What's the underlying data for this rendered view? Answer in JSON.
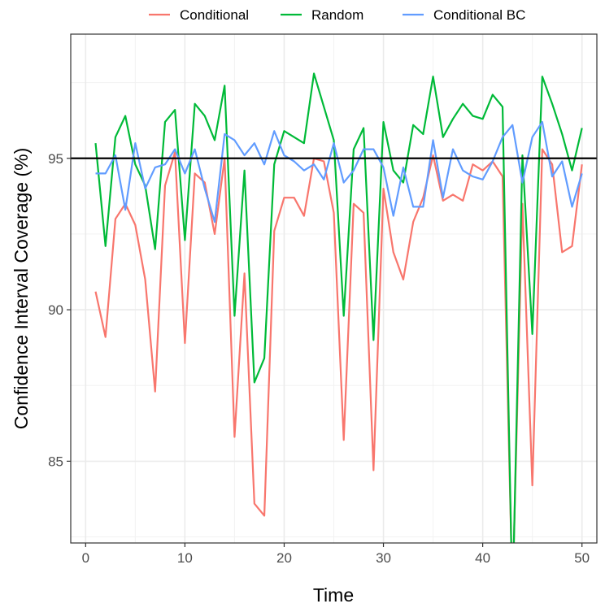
{
  "chart_data": {
    "type": "line",
    "xlabel": "Time",
    "ylabel": "Confidence Interval Coverage (%)",
    "xlim": [
      -1.5,
      51.5
    ],
    "ylim": [
      82.3,
      99.1
    ],
    "x_ticks": [
      0,
      10,
      20,
      30,
      40,
      50
    ],
    "y_ticks": [
      85,
      90,
      95
    ],
    "x_tick_labels": [
      "0",
      "10",
      "20",
      "30",
      "40",
      "50"
    ],
    "y_tick_labels": [
      "85",
      "90",
      "95"
    ],
    "grid": true,
    "legend_position": "top",
    "reference_line": {
      "y": 95,
      "color": "#000000"
    },
    "x": [
      1,
      2,
      3,
      4,
      5,
      6,
      7,
      8,
      9,
      10,
      11,
      12,
      13,
      14,
      15,
      16,
      17,
      18,
      19,
      20,
      21,
      22,
      23,
      24,
      25,
      26,
      27,
      28,
      29,
      30,
      31,
      32,
      33,
      34,
      35,
      36,
      37,
      38,
      39,
      40,
      41,
      42,
      43,
      44,
      45,
      46,
      47,
      48,
      49,
      50
    ],
    "series": [
      {
        "name": "Conditional",
        "color": "#F8766D",
        "values": [
          90.6,
          89.1,
          93.0,
          93.5,
          92.8,
          91.0,
          87.3,
          94.1,
          95.2,
          88.9,
          94.5,
          94.2,
          92.5,
          95.0,
          85.8,
          91.2,
          83.6,
          83.2,
          92.6,
          93.7,
          93.7,
          93.1,
          95.0,
          94.9,
          93.2,
          85.7,
          93.5,
          93.2,
          84.7,
          94.0,
          91.9,
          91.0,
          92.9,
          93.7,
          95.1,
          93.6,
          93.8,
          93.6,
          94.8,
          94.6,
          94.9,
          94.4,
          80.5,
          93.5,
          84.2,
          95.3,
          94.8,
          91.9,
          92.1,
          94.8
        ]
      },
      {
        "name": "Random",
        "color": "#00BA38",
        "values": [
          95.5,
          92.1,
          95.7,
          96.4,
          94.8,
          94.1,
          92.0,
          96.2,
          96.6,
          92.3,
          96.8,
          96.4,
          95.6,
          97.4,
          89.8,
          94.6,
          87.6,
          88.4,
          94.8,
          95.9,
          95.7,
          95.5,
          97.8,
          96.7,
          95.6,
          89.8,
          95.3,
          96.0,
          89.0,
          96.2,
          94.6,
          94.2,
          96.1,
          95.8,
          97.7,
          95.7,
          96.3,
          96.8,
          96.4,
          96.3,
          97.1,
          96.7,
          80.2,
          95.1,
          89.2,
          97.7,
          96.8,
          95.8,
          94.6,
          96.0
        ]
      },
      {
        "name": "Conditional BC",
        "color": "#619CFF",
        "values": [
          94.5,
          94.5,
          95.1,
          93.3,
          95.5,
          94.0,
          94.7,
          94.8,
          95.3,
          94.5,
          95.3,
          94.0,
          92.9,
          95.8,
          95.6,
          95.1,
          95.5,
          94.8,
          95.9,
          95.1,
          94.9,
          94.6,
          94.8,
          94.3,
          95.5,
          94.2,
          94.6,
          95.3,
          95.3,
          94.7,
          93.1,
          94.7,
          93.4,
          93.4,
          95.6,
          93.7,
          95.3,
          94.6,
          94.4,
          94.3,
          94.9,
          95.7,
          96.1,
          94.2,
          95.7,
          96.2,
          94.4,
          94.9,
          93.4,
          94.5
        ]
      }
    ]
  }
}
